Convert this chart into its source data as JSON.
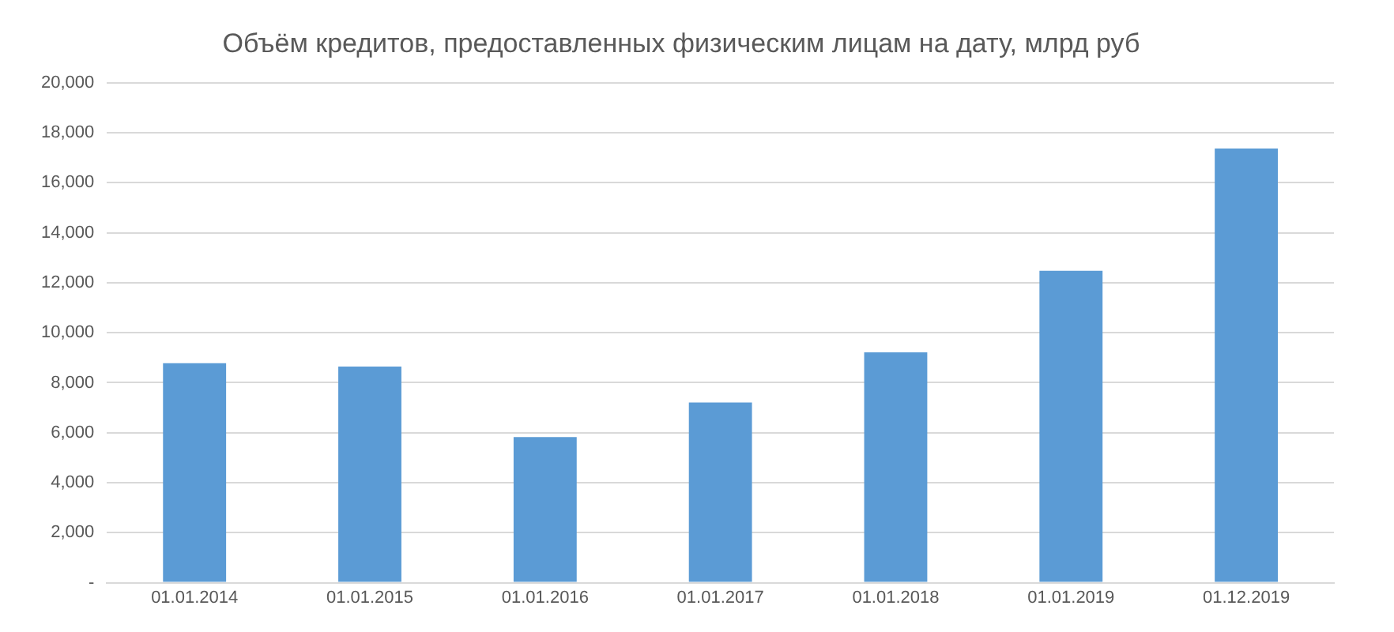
{
  "chart_data": {
    "type": "bar",
    "title": "Объём кредитов, предоставленных физическим лицам на дату, млрд руб",
    "categories": [
      "01.01.2014",
      "01.01.2015",
      "01.01.2016",
      "01.01.2017",
      "01.01.2018",
      "01.01.2019",
      "01.12.2019"
    ],
    "values": [
      8780,
      8650,
      5830,
      7210,
      9220,
      12480,
      17370
    ],
    "color": "#5b9bd5",
    "ylim": [
      0,
      20000
    ],
    "yticks": [
      {
        "value": 0,
        "label": "-"
      },
      {
        "value": 2000,
        "label": "2,000"
      },
      {
        "value": 4000,
        "label": "4,000"
      },
      {
        "value": 6000,
        "label": "6,000"
      },
      {
        "value": 8000,
        "label": "8,000"
      },
      {
        "value": 10000,
        "label": "10,000"
      },
      {
        "value": 12000,
        "label": "12,000"
      },
      {
        "value": 14000,
        "label": "14,000"
      },
      {
        "value": 16000,
        "label": "16,000"
      },
      {
        "value": 18000,
        "label": "18,000"
      },
      {
        "value": 20000,
        "label": "20,000"
      }
    ],
    "grid": "y",
    "legend": false
  }
}
